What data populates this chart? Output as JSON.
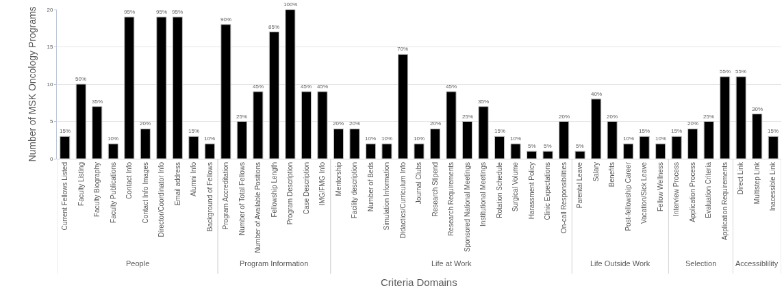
{
  "chart_data": {
    "type": "bar",
    "xlabel": "Criteria Domains",
    "ylabel": "Number of MSK Oncology Programs",
    "categories": [
      "Current Fellows Listed",
      "Faculty Listing",
      "Faculty Biography",
      "Faculty Publications",
      "Contact Info",
      "Contact Info Images",
      "Director/Coordinator Info",
      "Email address",
      "Alumni Info",
      "Background of Fellows",
      "Program Accreditation",
      "Number of Total Fellows",
      "Number of Available Positions",
      "Fellowship Length",
      "Program Description",
      "Case Description",
      "IMG/FMG Info",
      "Mentorship",
      "Facility description",
      "Number of Beds",
      "Simulation Information",
      "Didactics/Curriculum Info",
      "Journal Clubs",
      "Research Stipend",
      "Research Requirements",
      "Sponsored National Meetings",
      "Institutional Meetings",
      "Rotation Schedule",
      "Surgical Volume",
      "Harassment Policy",
      "Clinic Expectations",
      "On-call Responsibilities",
      "Parental Leave",
      "Salary",
      "Benefits",
      "Post-fellowship Career",
      "Vacation/Sick Leave",
      "Fellow Wellness",
      "Interview Process",
      "Application Process",
      "Evaluation Criteria",
      "Application Requirements",
      "Direct Link",
      "Multistep Link",
      "Inacessible Link"
    ],
    "values": [
      3,
      10,
      7,
      2,
      19,
      4,
      19,
      19,
      3,
      2,
      18,
      5,
      9,
      17,
      20,
      9,
      9,
      4,
      4,
      2,
      2,
      14,
      2,
      4,
      9,
      5,
      7,
      3,
      2,
      1,
      1,
      5,
      1,
      8,
      5,
      2,
      3,
      2,
      3,
      4,
      5,
      11,
      11,
      6,
      3
    ],
    "color": "#000000",
    "ylim": [
      0,
      20
    ],
    "yticks": [
      0,
      5,
      10,
      15,
      20
    ],
    "grid": "y",
    "legend": false,
    "annotations": [
      "People",
      "Program Information",
      "Life at Work",
      "Life Outside Work",
      "Selection",
      "Accessiblility",
      {
        "text": "15%",
        "x": "Current Fellows Listed",
        "y": 3
      },
      {
        "text": "50%",
        "x": "Faculty Listing",
        "y": 10
      },
      {
        "text": "35%",
        "x": "Faculty Biography",
        "y": 7
      },
      {
        "text": "10%",
        "x": "Faculty Publications",
        "y": 2
      },
      {
        "text": "95%",
        "x": "Contact Info",
        "y": 19
      },
      {
        "text": "20%",
        "x": "Contact Info Images",
        "y": 4
      },
      {
        "text": "95%",
        "x": "Director/Coordinator Info",
        "y": 19
      },
      {
        "text": "95%",
        "x": "Email address",
        "y": 19
      },
      {
        "text": "15%",
        "x": "Alumni Info",
        "y": 3
      },
      {
        "text": "10%",
        "x": "Background of Fellows",
        "y": 2
      },
      {
        "text": "90%",
        "x": "Program Accreditation",
        "y": 18
      },
      {
        "text": "25%",
        "x": "Number of Total Fellows",
        "y": 5
      },
      {
        "text": "45%",
        "x": "Number of Available Positions",
        "y": 9
      },
      {
        "text": "85%",
        "x": "Fellowship Length",
        "y": 17
      },
      {
        "text": "100%",
        "x": "Program Description",
        "y": 20
      },
      {
        "text": "45%",
        "x": "Case Description",
        "y": 9
      },
      {
        "text": "45%",
        "x": "IMG/FMG Info",
        "y": 9
      },
      {
        "text": "20%",
        "x": "Mentorship",
        "y": 4
      },
      {
        "text": "20%",
        "x": "Facility description",
        "y": 4
      },
      {
        "text": "10%",
        "x": "Number of Beds",
        "y": 2
      },
      {
        "text": "10%",
        "x": "Simulation Information",
        "y": 2
      },
      {
        "text": "70%",
        "x": "Didactics/Curriculum Info",
        "y": 14
      },
      {
        "text": "10%",
        "x": "Journal Clubs",
        "y": 2
      },
      {
        "text": "20%",
        "x": "Research Stipend",
        "y": 4
      },
      {
        "text": "45%",
        "x": "Research Requirements",
        "y": 9
      },
      {
        "text": "25%",
        "x": "Sponsored National Meetings",
        "y": 5
      },
      {
        "text": "35%",
        "x": "Institutional Meetings",
        "y": 7
      },
      {
        "text": "15%",
        "x": "Rotation Schedule",
        "y": 3
      },
      {
        "text": "10%",
        "x": "Surgical Volume",
        "y": 2
      },
      {
        "text": "5%",
        "x": "Harassment Policy",
        "y": 1
      },
      {
        "text": "5%",
        "x": "Clinic Expectations",
        "y": 1
      },
      {
        "text": "20%",
        "x": "On-call Responsibilities",
        "y": 5
      },
      {
        "text": "5%",
        "x": "Parental Leave",
        "y": 1
      },
      {
        "text": "40%",
        "x": "Salary",
        "y": 8
      },
      {
        "text": "20%",
        "x": "Benefits",
        "y": 5
      },
      {
        "text": "10%",
        "x": "Post-fellowship Career",
        "y": 2
      },
      {
        "text": "15%",
        "x": "Vacation/Sick Leave",
        "y": 3
      },
      {
        "text": "10%",
        "x": "Fellow Wellness",
        "y": 2
      },
      {
        "text": "15%",
        "x": "Interview Process",
        "y": 3
      },
      {
        "text": "20%",
        "x": "Application Process",
        "y": 4
      },
      {
        "text": "25%",
        "x": "Evaluation Criteria",
        "y": 5
      },
      {
        "text": "55%",
        "x": "Application Requirements",
        "y": 11
      },
      {
        "text": "55%",
        "x": "Direct Link",
        "y": 11
      },
      {
        "text": "30%",
        "x": "Multistep Link",
        "y": 6
      },
      {
        "text": "15%",
        "x": "Inacessible Link",
        "y": 3
      }
    ]
  }
}
